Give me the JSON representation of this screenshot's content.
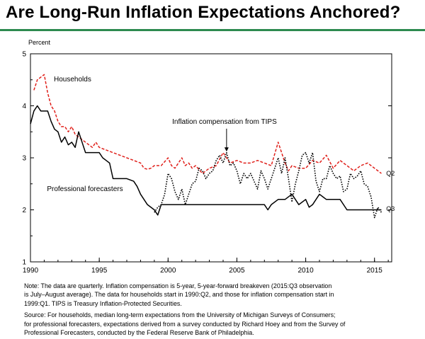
{
  "title": "Are Long-Run Inflation Expectations Anchored?",
  "colors": {
    "rule": "#2d8a4f",
    "households": "#e0201b",
    "professional": "#000000",
    "tips": "#000000"
  },
  "chart_data": {
    "type": "line",
    "ylabel": "Percent",
    "ylim": [
      1,
      5
    ],
    "xlim": [
      1990,
      2016.25
    ],
    "yticks": [
      1,
      2,
      3,
      4,
      5
    ],
    "xticks": [
      1990,
      1995,
      2000,
      2005,
      2010,
      2015
    ],
    "series": [
      {
        "name": "Households",
        "label": "Households",
        "label_side": "Q2",
        "style": "dashed",
        "x": [
          1990.25,
          1990.5,
          1990.75,
          1991,
          1991.25,
          1991.5,
          1991.75,
          1992,
          1992.25,
          1992.5,
          1992.75,
          1993,
          1993.25,
          1993.5,
          1993.75,
          1994,
          1994.25,
          1994.5,
          1994.75,
          1995,
          1995.5,
          1996,
          1996.5,
          1997,
          1997.5,
          1998,
          1998.25,
          1998.5,
          1998.75,
          1999,
          1999.5,
          2000,
          2000.25,
          2000.5,
          2000.75,
          2001,
          2001.25,
          2001.5,
          2001.75,
          2002,
          2002.5,
          2003,
          2003.5,
          2004,
          2004.5,
          2005,
          2005.5,
          2006,
          2006.5,
          2007,
          2007.5,
          2008,
          2008.25,
          2008.5,
          2008.75,
          2009,
          2009.5,
          2010,
          2010.5,
          2011,
          2011.5,
          2012,
          2012.5,
          2013,
          2013.5,
          2014,
          2014.5,
          2015,
          2015.25,
          2015.5
        ],
        "y": [
          4.3,
          4.5,
          4.55,
          4.6,
          4.25,
          4.0,
          3.9,
          3.7,
          3.6,
          3.6,
          3.5,
          3.6,
          3.45,
          3.4,
          3.35,
          3.3,
          3.25,
          3.2,
          3.3,
          3.2,
          3.15,
          3.1,
          3.05,
          3.0,
          2.95,
          2.9,
          2.8,
          2.78,
          2.8,
          2.85,
          2.85,
          3.0,
          2.85,
          2.8,
          2.9,
          3.0,
          2.85,
          2.9,
          2.8,
          2.85,
          2.7,
          2.8,
          2.85,
          3.1,
          2.9,
          2.95,
          2.9,
          2.9,
          2.95,
          2.9,
          2.85,
          3.3,
          3.1,
          2.9,
          2.75,
          2.85,
          2.8,
          2.8,
          2.95,
          2.9,
          3.05,
          2.8,
          2.95,
          2.85,
          2.75,
          2.85,
          2.9,
          2.8,
          2.75,
          2.7
        ]
      },
      {
        "name": "Professional forecasters",
        "label": "Professional forecasters",
        "style": "solid",
        "x": [
          1990,
          1990.25,
          1990.5,
          1990.75,
          1991,
          1991.25,
          1991.5,
          1991.75,
          1992,
          1992.25,
          1992.5,
          1992.75,
          1993,
          1993.25,
          1993.5,
          1993.75,
          1994,
          1995,
          1995.25,
          1995.5,
          1995.75,
          1996,
          1997,
          1997.5,
          1997.75,
          1998,
          1998.5,
          1999,
          1999.25,
          1999.5,
          2000,
          2001,
          2002,
          2003,
          2004,
          2005,
          2006,
          2007,
          2007.25,
          2007.5,
          2008,
          2008.5,
          2009,
          2009.5,
          2010,
          2010.25,
          2010.5,
          2011,
          2011.25,
          2011.5,
          2012,
          2012.5,
          2013,
          2013.5,
          2014,
          2015,
          2015.25,
          2015.5
        ],
        "y": [
          3.65,
          3.9,
          4.0,
          3.9,
          3.9,
          3.9,
          3.7,
          3.55,
          3.5,
          3.3,
          3.4,
          3.25,
          3.3,
          3.2,
          3.5,
          3.3,
          3.1,
          3.1,
          3.0,
          2.95,
          2.9,
          2.6,
          2.6,
          2.55,
          2.45,
          2.3,
          2.1,
          2.0,
          1.9,
          2.1,
          2.1,
          2.1,
          2.1,
          2.1,
          2.1,
          2.1,
          2.1,
          2.1,
          2.0,
          2.1,
          2.2,
          2.2,
          2.3,
          2.1,
          2.2,
          2.05,
          2.1,
          2.3,
          2.25,
          2.2,
          2.2,
          2.2,
          2.0,
          2.0,
          2.0,
          2.0,
          2.0,
          2.0
        ]
      },
      {
        "name": "Inflation compensation from TIPS",
        "label": "Inflation compensation from TIPS",
        "style": "dotted",
        "x": [
          1999,
          1999.25,
          1999.5,
          1999.75,
          2000,
          2000.25,
          2000.5,
          2000.75,
          2001,
          2001.25,
          2001.5,
          2001.75,
          2002,
          2002.25,
          2002.5,
          2002.75,
          2003,
          2003.25,
          2003.5,
          2003.75,
          2004,
          2004.25,
          2004.5,
          2004.75,
          2005,
          2005.25,
          2005.5,
          2005.75,
          2006,
          2006.25,
          2006.5,
          2006.75,
          2007,
          2007.25,
          2007.5,
          2007.75,
          2008,
          2008.25,
          2008.5,
          2008.75,
          2009,
          2009.25,
          2009.5,
          2009.75,
          2010,
          2010.25,
          2010.5,
          2010.75,
          2011,
          2011.25,
          2011.5,
          2011.75,
          2012,
          2012.25,
          2012.5,
          2012.75,
          2013,
          2013.25,
          2013.5,
          2013.75,
          2014,
          2014.25,
          2014.5,
          2014.75,
          2015,
          2015.25,
          2015.5
        ],
        "y": [
          1.95,
          2.05,
          2.1,
          2.3,
          2.7,
          2.6,
          2.35,
          2.2,
          2.4,
          2.1,
          2.3,
          2.5,
          2.55,
          2.8,
          2.75,
          2.6,
          2.7,
          2.75,
          2.95,
          3.05,
          2.9,
          3.1,
          2.85,
          2.9,
          2.75,
          2.5,
          2.7,
          2.6,
          2.7,
          2.55,
          2.4,
          2.75,
          2.6,
          2.4,
          2.6,
          2.8,
          3.0,
          2.7,
          3.0,
          2.6,
          2.15,
          2.5,
          2.75,
          3.05,
          3.1,
          2.9,
          3.1,
          2.55,
          2.35,
          2.6,
          2.6,
          2.85,
          2.7,
          2.6,
          2.65,
          2.35,
          2.4,
          2.7,
          2.6,
          2.65,
          2.75,
          2.5,
          2.45,
          2.25,
          1.85,
          2.05,
          1.95
        ]
      }
    ],
    "end_labels": {
      "Q2": "Q2",
      "Q3": "Q3"
    }
  },
  "notes": {
    "note_lines": [
      "Note:  The data are quarterly.  Inflation compensation is 5-year, 5-year-forward breakeven (2015:Q3 observation",
      "is July–August average).  The data for households start in 1990:Q2, and those for inflation compensation start in",
      "1999:Q1.  TIPS is Treasury Inflation-Protected Securities."
    ],
    "source_lines": [
      "Source:  For households, median long-term expectations from the University of Michigan Surveys of Consumers;",
      "for professional forecasters, expectations derived from a survey conducted by Richard Hoey and from the Survey of",
      "Professional Forecasters, conducted by the Federal Reserve Bank of Philadelphia."
    ]
  }
}
